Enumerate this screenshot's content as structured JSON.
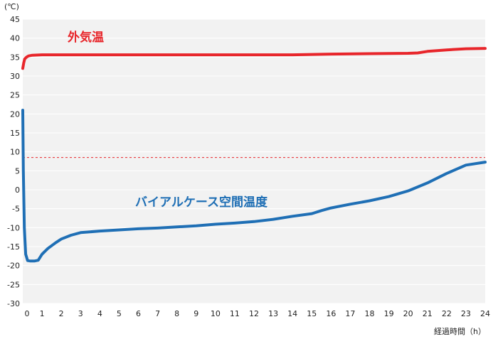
{
  "chart_data": {
    "type": "line",
    "title": "",
    "ylabel": "(℃)",
    "xlabel": "経過時間（h）",
    "ylim": [
      -30,
      45
    ],
    "xlim": [
      0,
      24
    ],
    "yticks": [
      45,
      40,
      35,
      30,
      25,
      20,
      15,
      10,
      5,
      0,
      -5,
      -10,
      -15,
      -20,
      -25,
      -30
    ],
    "xticks": [
      0,
      1,
      2,
      3,
      4,
      5,
      6,
      7,
      8,
      9,
      10,
      11,
      12,
      13,
      14,
      15,
      16,
      17,
      18,
      19,
      20,
      21,
      22,
      23,
      24
    ],
    "grid": true,
    "legend": "none",
    "reference_line": {
      "y": 8.5,
      "color": "#e8262b",
      "style": "dashed"
    },
    "series": [
      {
        "name": "外気温",
        "color": "#e8262b",
        "x": [
          0,
          0.05,
          0.1,
          0.2,
          0.3,
          0.5,
          1,
          2,
          4,
          6,
          8,
          10,
          12,
          14,
          15,
          16,
          18,
          20,
          20.5,
          21,
          22,
          23,
          24
        ],
        "y": [
          32.0,
          33.5,
          34.5,
          35.0,
          35.3,
          35.5,
          35.6,
          35.6,
          35.6,
          35.6,
          35.6,
          35.6,
          35.6,
          35.6,
          35.7,
          35.8,
          35.9,
          36.0,
          36.1,
          36.5,
          36.9,
          37.2,
          37.3
        ]
      },
      {
        "name": "バイアルケース空間温度",
        "color": "#1f6fb5",
        "x": [
          0,
          0.03,
          0.08,
          0.15,
          0.25,
          0.4,
          0.6,
          0.8,
          1.0,
          1.3,
          1.7,
          2.0,
          2.5,
          3.0,
          4.0,
          5.0,
          6.0,
          7.0,
          8.0,
          9.0,
          10.0,
          11.0,
          12.0,
          13.0,
          14.0,
          15.0,
          15.5,
          16.0,
          17.0,
          18.0,
          19.0,
          20.0,
          21.0,
          22.0,
          23.0,
          24.0
        ],
        "y": [
          21,
          5,
          -10,
          -17,
          -18.7,
          -18.8,
          -18.8,
          -18.6,
          -17.0,
          -15.5,
          -14.0,
          -13.0,
          -12.0,
          -11.3,
          -10.9,
          -10.6,
          -10.3,
          -10.1,
          -9.8,
          -9.5,
          -9.1,
          -8.8,
          -8.4,
          -7.8,
          -7.0,
          -6.3,
          -5.5,
          -4.8,
          -3.8,
          -2.9,
          -1.8,
          -0.3,
          1.8,
          4.3,
          6.5,
          7.3
        ]
      }
    ]
  }
}
